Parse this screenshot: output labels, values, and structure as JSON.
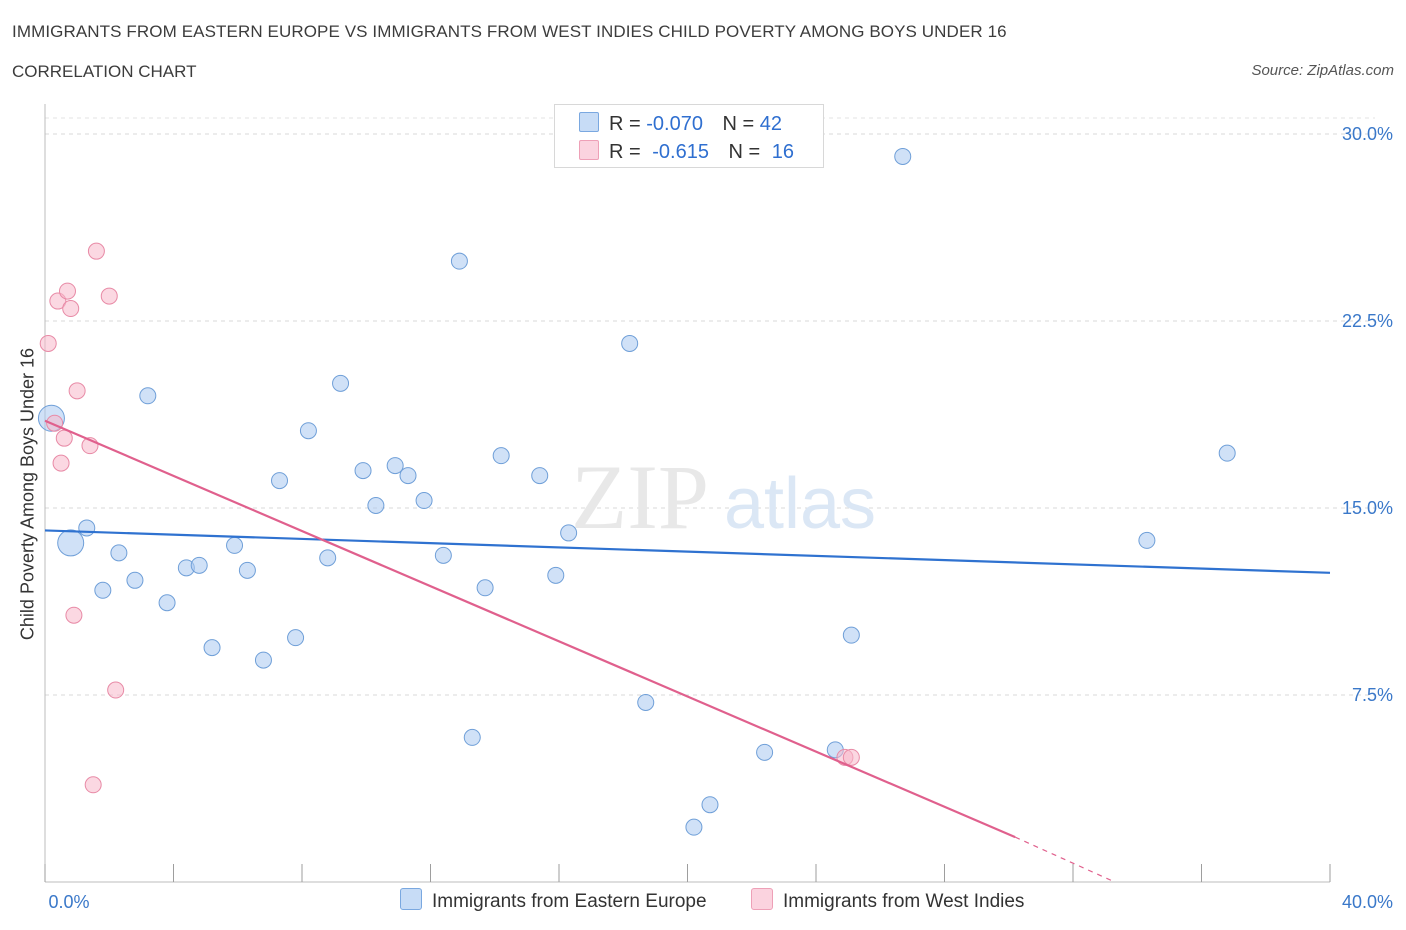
{
  "header": {
    "title": "IMMIGRANTS FROM EASTERN EUROPE VS IMMIGRANTS FROM WEST INDIES CHILD POVERTY AMONG BOYS UNDER 16",
    "subtitle": "CORRELATION CHART",
    "source": "Source: ZipAtlas.com"
  },
  "legend": {
    "rows": [
      {
        "r_label": "R =",
        "r_value": "-0.070",
        "n_label": "N =",
        "n_value": "42",
        "color": "#a9c8f0"
      },
      {
        "r_label": "R =",
        "r_value": "-0.615",
        "n_label": "N =",
        "n_value": "16",
        "color": "#f7b8cb"
      }
    ]
  },
  "watermark": {
    "zip": "ZIP",
    "atlas": "atlas"
  },
  "chart_data": {
    "type": "scatter",
    "title": "IMMIGRANTS FROM EASTERN EUROPE VS IMMIGRANTS FROM WEST INDIES CHILD POVERTY AMONG BOYS UNDER 16",
    "xlabel": "",
    "ylabel": "Child Poverty Among Boys Under 16",
    "xlim": [
      0,
      40
    ],
    "ylim": [
      0,
      30
    ],
    "x_tick_labels": [
      "0.0%",
      "40.0%"
    ],
    "y_ticks": [
      7.5,
      15.0,
      22.5,
      30.0
    ],
    "y_tick_labels": [
      "7.5%",
      "15.0%",
      "22.5%",
      "30.0%"
    ],
    "grid": true,
    "legend_position": "bottom",
    "series": [
      {
        "name": "Immigrants from Eastern Europe",
        "color": "#a9c8f0",
        "stroke": "#6f9fd8",
        "trend_color": "#2f72d0",
        "trend": {
          "x0": 0,
          "y0": 14.1,
          "x1": 40,
          "y1": 12.4
        },
        "points": [
          {
            "x": 0.2,
            "y": 18.6,
            "big": true
          },
          {
            "x": 0.8,
            "y": 13.6,
            "big": true
          },
          {
            "x": 1.3,
            "y": 14.2
          },
          {
            "x": 1.8,
            "y": 11.7
          },
          {
            "x": 2.3,
            "y": 13.2
          },
          {
            "x": 2.8,
            "y": 12.1
          },
          {
            "x": 3.2,
            "y": 19.5
          },
          {
            "x": 3.8,
            "y": 11.2
          },
          {
            "x": 4.4,
            "y": 12.6
          },
          {
            "x": 4.8,
            "y": 12.7
          },
          {
            "x": 5.2,
            "y": 9.4
          },
          {
            "x": 5.9,
            "y": 13.5
          },
          {
            "x": 6.3,
            "y": 12.5
          },
          {
            "x": 6.8,
            "y": 8.9
          },
          {
            "x": 7.3,
            "y": 16.1
          },
          {
            "x": 7.8,
            "y": 9.8
          },
          {
            "x": 8.2,
            "y": 18.1
          },
          {
            "x": 8.8,
            "y": 13.0
          },
          {
            "x": 9.2,
            "y": 20.0
          },
          {
            "x": 9.9,
            "y": 16.5
          },
          {
            "x": 10.3,
            "y": 15.1
          },
          {
            "x": 10.9,
            "y": 16.7
          },
          {
            "x": 11.3,
            "y": 16.3
          },
          {
            "x": 11.8,
            "y": 15.3
          },
          {
            "x": 12.4,
            "y": 13.1
          },
          {
            "x": 12.9,
            "y": 24.9
          },
          {
            "x": 13.3,
            "y": 5.8
          },
          {
            "x": 13.7,
            "y": 11.8
          },
          {
            "x": 14.2,
            "y": 17.1
          },
          {
            "x": 15.4,
            "y": 16.3
          },
          {
            "x": 15.9,
            "y": 12.3
          },
          {
            "x": 16.3,
            "y": 14.0
          },
          {
            "x": 18.2,
            "y": 21.6
          },
          {
            "x": 18.7,
            "y": 7.2
          },
          {
            "x": 20.2,
            "y": 2.2
          },
          {
            "x": 20.7,
            "y": 3.1
          },
          {
            "x": 22.4,
            "y": 5.2
          },
          {
            "x": 24.6,
            "y": 5.3
          },
          {
            "x": 25.1,
            "y": 9.9
          },
          {
            "x": 26.7,
            "y": 29.1
          },
          {
            "x": 34.3,
            "y": 13.7
          },
          {
            "x": 36.8,
            "y": 17.2
          }
        ]
      },
      {
        "name": "Immigrants from West Indies",
        "color": "#f7b8cb",
        "stroke": "#e88aa6",
        "trend_color": "#e0608d",
        "trend": {
          "x0": 0,
          "y0": 18.5,
          "x1": 30.2,
          "y1": 1.8
        },
        "trend_dash": {
          "x0": 30.2,
          "y0": 1.8,
          "x1": 33.3,
          "y1": 0.0
        },
        "points": [
          {
            "x": 0.1,
            "y": 21.6
          },
          {
            "x": 0.3,
            "y": 18.4
          },
          {
            "x": 0.4,
            "y": 23.3
          },
          {
            "x": 0.5,
            "y": 16.8
          },
          {
            "x": 0.6,
            "y": 17.8
          },
          {
            "x": 0.7,
            "y": 23.7
          },
          {
            "x": 0.8,
            "y": 23.0
          },
          {
            "x": 0.9,
            "y": 10.7
          },
          {
            "x": 1.0,
            "y": 19.7
          },
          {
            "x": 1.4,
            "y": 17.5
          },
          {
            "x": 1.5,
            "y": 3.9
          },
          {
            "x": 1.6,
            "y": 25.3
          },
          {
            "x": 2.0,
            "y": 23.5
          },
          {
            "x": 2.2,
            "y": 7.7
          },
          {
            "x": 24.9,
            "y": 5.0
          },
          {
            "x": 25.1,
            "y": 5.0
          }
        ]
      }
    ]
  }
}
